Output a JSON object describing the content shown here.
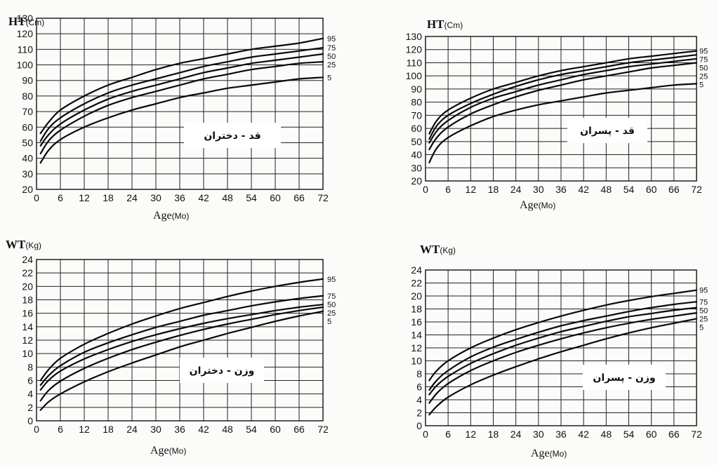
{
  "chart_data": [
    {
      "type": "line",
      "ylabel": "HT",
      "yunit": "(Cm)",
      "xlabel": "Age",
      "xunit": "(Mo)",
      "panel_label": "قد - دختران",
      "xlim": [
        0,
        72
      ],
      "ylim": [
        20,
        130
      ],
      "x_ticks": [
        0,
        6,
        12,
        18,
        24,
        30,
        36,
        42,
        48,
        54,
        60,
        66,
        72
      ],
      "y_ticks": [
        20,
        30,
        40,
        50,
        60,
        70,
        80,
        90,
        100,
        110,
        120,
        130
      ],
      "grid": true,
      "x": [
        1,
        3,
        6,
        12,
        18,
        24,
        30,
        36,
        42,
        48,
        54,
        60,
        66,
        72
      ],
      "series": [
        {
          "name": "95",
          "values": [
            56,
            63,
            71,
            80,
            87,
            92,
            97,
            101,
            104,
            107,
            110,
            112,
            114,
            117
          ]
        },
        {
          "name": "75",
          "values": [
            51,
            59,
            66,
            75,
            82,
            87,
            91,
            95,
            99,
            102,
            105,
            107,
            109,
            111
          ]
        },
        {
          "name": "50",
          "values": [
            48,
            55,
            62,
            71,
            78,
            83,
            87,
            91,
            95,
            98,
            101,
            103,
            105,
            107
          ]
        },
        {
          "name": "25",
          "values": [
            43,
            51,
            58,
            67,
            74,
            79,
            83,
            87,
            91,
            94,
            97,
            99,
            101,
            102
          ]
        },
        {
          "name": "5",
          "values": [
            37,
            45,
            52,
            60,
            66,
            71,
            75,
            79,
            82,
            85,
            87,
            89,
            91,
            92
          ]
        }
      ]
    },
    {
      "type": "line",
      "ylabel": "HT",
      "yunit": "(Cm)",
      "xlabel": "Age",
      "xunit": "(Mo)",
      "panel_label": "قد - پسران",
      "xlim": [
        0,
        72
      ],
      "ylim": [
        20,
        130
      ],
      "x_ticks": [
        0,
        6,
        12,
        18,
        24,
        30,
        36,
        42,
        48,
        54,
        60,
        66,
        72
      ],
      "y_ticks": [
        20,
        30,
        40,
        50,
        60,
        70,
        80,
        90,
        100,
        110,
        120,
        130
      ],
      "grid": true,
      "x": [
        1,
        3,
        6,
        12,
        18,
        24,
        30,
        36,
        42,
        48,
        54,
        60,
        66,
        72
      ],
      "series": [
        {
          "name": "95",
          "values": [
            56,
            66,
            74,
            83,
            90,
            95,
            100,
            104,
            107,
            110,
            113,
            115,
            117,
            119
          ]
        },
        {
          "name": "75",
          "values": [
            52,
            62,
            70,
            79,
            86,
            92,
            97,
            101,
            104,
            107,
            110,
            112,
            114,
            116
          ]
        },
        {
          "name": "50",
          "values": [
            49,
            58,
            66,
            76,
            83,
            88,
            93,
            97,
            101,
            104,
            107,
            109,
            111,
            113
          ]
        },
        {
          "name": "25",
          "values": [
            44,
            53,
            61,
            71,
            78,
            84,
            89,
            93,
            97,
            100,
            103,
            106,
            108,
            110
          ]
        },
        {
          "name": "5",
          "values": [
            34,
            45,
            53,
            62,
            69,
            74,
            78,
            81,
            84,
            87,
            89,
            91,
            93,
            94
          ]
        }
      ]
    },
    {
      "type": "line",
      "ylabel": "WT",
      "yunit": "(Kg)",
      "xlabel": "Age",
      "xunit": "(Mo)",
      "panel_label": "وزن - دختران",
      "xlim": [
        0,
        72
      ],
      "ylim": [
        0,
        24
      ],
      "x_ticks": [
        0,
        6,
        12,
        18,
        24,
        30,
        36,
        42,
        48,
        54,
        60,
        66,
        72
      ],
      "y_ticks": [
        0,
        2,
        4,
        6,
        8,
        10,
        12,
        14,
        16,
        18,
        20,
        22,
        24
      ],
      "grid": true,
      "x": [
        1,
        3,
        6,
        12,
        18,
        24,
        30,
        36,
        42,
        48,
        54,
        60,
        66,
        72
      ],
      "series": [
        {
          "name": "95",
          "values": [
            6,
            7.6,
            9.3,
            11.4,
            13,
            14.4,
            15.6,
            16.7,
            17.6,
            18.5,
            19.3,
            20,
            20.6,
            21.1
          ]
        },
        {
          "name": "75",
          "values": [
            5.3,
            6.7,
            8.2,
            10.2,
            11.6,
            12.8,
            13.9,
            14.8,
            15.7,
            16.4,
            17.1,
            17.7,
            18.2,
            18.6
          ]
        },
        {
          "name": "50",
          "values": [
            4.6,
            6,
            7.4,
            9.2,
            10.6,
            11.8,
            12.8,
            13.7,
            14.5,
            15.2,
            15.8,
            16.4,
            16.9,
            17.3
          ]
        },
        {
          "name": "25",
          "values": [
            3,
            4.5,
            5.9,
            7.8,
            9.3,
            10.6,
            11.7,
            12.7,
            13.6,
            14.4,
            15.1,
            15.8,
            16.4,
            16.9
          ]
        },
        {
          "name": "5",
          "values": [
            1.6,
            2.8,
            4,
            5.8,
            7.3,
            8.6,
            9.8,
            11,
            12,
            13,
            13.9,
            14.8,
            15.6,
            16.3
          ]
        }
      ]
    },
    {
      "type": "line",
      "ylabel": "WT",
      "yunit": "(Kg)",
      "xlabel": "Age",
      "xunit": "(Mo)",
      "panel_label": "وزن - پسران",
      "xlim": [
        0,
        72
      ],
      "ylim": [
        0,
        24
      ],
      "x_ticks": [
        0,
        6,
        12,
        18,
        24,
        30,
        36,
        42,
        48,
        54,
        60,
        66,
        72
      ],
      "y_ticks": [
        0,
        2,
        4,
        6,
        8,
        10,
        12,
        14,
        16,
        18,
        20,
        22,
        24
      ],
      "grid": true,
      "x": [
        1,
        3,
        6,
        12,
        18,
        24,
        30,
        36,
        42,
        48,
        54,
        60,
        66,
        72
      ],
      "series": [
        {
          "name": "95",
          "values": [
            7,
            8.5,
            10,
            12,
            13.5,
            14.8,
            15.9,
            16.9,
            17.8,
            18.6,
            19.3,
            19.9,
            20.4,
            20.9
          ]
        },
        {
          "name": "75",
          "values": [
            5.5,
            7,
            8.5,
            10.6,
            12.1,
            13.3,
            14.4,
            15.4,
            16.2,
            16.9,
            17.6,
            18.2,
            18.7,
            19.1
          ]
        },
        {
          "name": "50",
          "values": [
            4.8,
            6.2,
            7.6,
            9.6,
            11.1,
            12.4,
            13.5,
            14.5,
            15.3,
            16.1,
            16.8,
            17.3,
            17.8,
            18.2
          ]
        },
        {
          "name": "25",
          "values": [
            3.5,
            5,
            6.5,
            8.5,
            10,
            11.3,
            12.4,
            13.4,
            14.3,
            15.1,
            15.8,
            16.4,
            16.9,
            17.4
          ]
        },
        {
          "name": "5",
          "values": [
            1.7,
            3,
            4.4,
            6.3,
            7.8,
            9.1,
            10.3,
            11.4,
            12.4,
            13.4,
            14.3,
            15.1,
            15.8,
            16.5
          ]
        }
      ]
    }
  ]
}
